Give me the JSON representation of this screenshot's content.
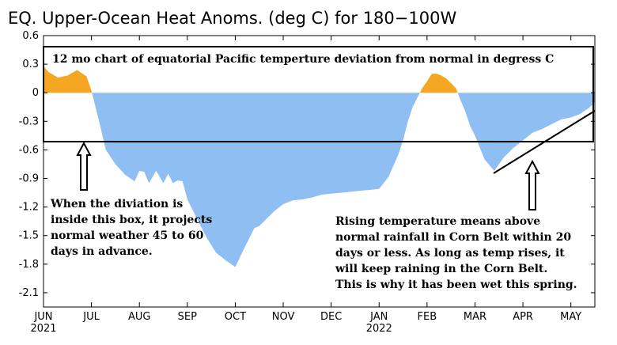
{
  "chart_data": {
    "type": "area",
    "title": "EQ. Upper-Ocean Heat Anoms. (deg C) for 180−100W",
    "ylim": [
      -2.25,
      0.6
    ],
    "yticks": [
      "0.6",
      "0.3",
      "0",
      "-0.3",
      "-0.6",
      "-0.9",
      "-1.2",
      "-1.5",
      "-1.8",
      "-2.1"
    ],
    "ytick_values": [
      0.6,
      0.3,
      0,
      -0.3,
      -0.6,
      -0.9,
      -1.2,
      -1.5,
      -1.8,
      -2.1
    ],
    "month_labels": [
      "JUN",
      "JUL",
      "AUG",
      "SEP",
      "OCT",
      "NOV",
      "DEC",
      "JAN",
      "FEB",
      "MAR",
      "APR",
      "MAY"
    ],
    "year_labels": [
      "2021",
      "2022"
    ],
    "grid": false,
    "positive_color": "#f5a623",
    "negative_color": "#8fbff2",
    "x_unit": "months since start of June 2021",
    "x": [
      0,
      0.1,
      0.3,
      0.5,
      0.7,
      0.9,
      1.0,
      1.15,
      1.3,
      1.5,
      1.7,
      1.9,
      2.0,
      2.1,
      2.2,
      2.35,
      2.5,
      2.6,
      2.7,
      2.8,
      2.9,
      3.0,
      3.2,
      3.4,
      3.6,
      3.8,
      4.0,
      4.2,
      4.4,
      4.5,
      4.6,
      4.8,
      5.0,
      5.2,
      5.4,
      5.6,
      5.8,
      6.0,
      6.2,
      6.4,
      6.6,
      6.8,
      7.0,
      7.2,
      7.4,
      7.5,
      7.6,
      7.7,
      7.8,
      7.9,
      8.0,
      8.1,
      8.2,
      8.3,
      8.4,
      8.5,
      8.6,
      8.7,
      8.8,
      8.9,
      9.0,
      9.2,
      9.4,
      9.6,
      9.8,
      10.0,
      10.2,
      10.4,
      10.6,
      10.8,
      11.0,
      11.2,
      11.4,
      11.5
    ],
    "values": [
      0.28,
      0.22,
      0.16,
      0.18,
      0.24,
      0.17,
      0.02,
      -0.28,
      -0.6,
      -0.75,
      -0.86,
      -0.93,
      -0.82,
      -0.83,
      -0.95,
      -0.82,
      -0.95,
      -0.85,
      -0.95,
      -0.92,
      -0.93,
      -1.12,
      -1.32,
      -1.52,
      -1.68,
      -1.76,
      -1.83,
      -1.62,
      -1.42,
      -1.4,
      -1.35,
      -1.25,
      -1.17,
      -1.13,
      -1.12,
      -1.1,
      -1.07,
      -1.06,
      -1.05,
      -1.04,
      -1.03,
      -1.02,
      -1.01,
      -0.88,
      -0.65,
      -0.5,
      -0.3,
      -0.15,
      -0.05,
      0.05,
      0.12,
      0.2,
      0.2,
      0.18,
      0.15,
      0.1,
      0.05,
      -0.08,
      -0.2,
      -0.35,
      -0.45,
      -0.7,
      -0.82,
      -0.68,
      -0.58,
      -0.5,
      -0.42,
      -0.38,
      -0.33,
      -0.28,
      -0.26,
      -0.22,
      -0.15,
      -0.1
    ]
  },
  "annotations": {
    "box_caption": "12 mo chart of equatorial Pacific temperture deviation from normal in degress C",
    "left_note": [
      "When the diviation is",
      "inside this box, it projects",
      "normal weather 45 to 60",
      "days in advance."
    ],
    "right_note": [
      "Rising temperature means above",
      "normal rainfall in Corn Belt within 20",
      "days or less. As long as temp rises, it",
      "will keep raining in the Corn Belt.",
      "This is why it has been wet this spring."
    ]
  }
}
